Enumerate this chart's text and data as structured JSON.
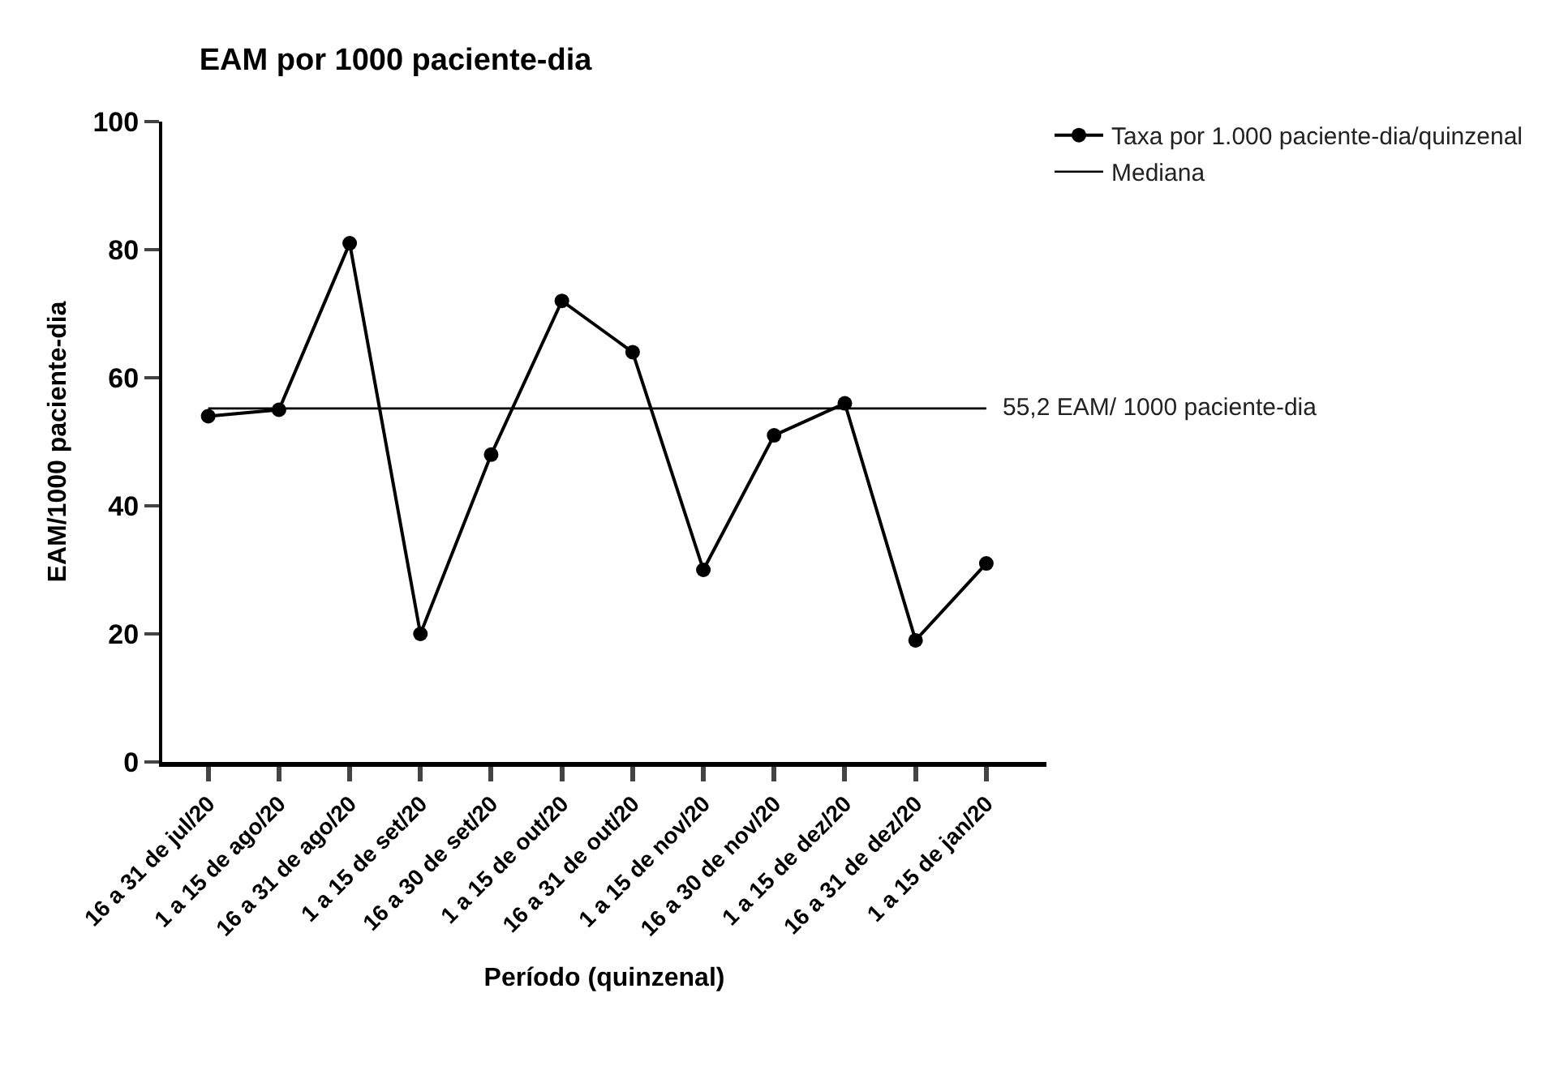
{
  "chart_data": {
    "type": "line",
    "title": "EAM por 1000 paciente-dia",
    "xlabel": "Período (quinzenal)",
    "ylabel": "EAM/1000 paciente-dia",
    "categories": [
      "16 a 31 de jul/20",
      "1 a 15 de ago/20",
      "16 a 31 de ago/20",
      "1 a 15 de set/20",
      "16 a 30 de set/20",
      "1 a 15 de out/20",
      "16 a 31 de out/20",
      "1 a 15 de nov/20",
      "16 a 30 de nov/20",
      "1 a 15 de dez/20",
      "16 a 31 de dez/20",
      "1 a 15 de jan/20"
    ],
    "series": [
      {
        "name": "Taxa por 1.000 paciente-dia/quinzenal",
        "color": "#000000",
        "marker": "circle",
        "values": [
          54,
          55,
          81,
          20,
          48,
          72,
          64,
          30,
          51,
          56,
          19,
          31
        ]
      },
      {
        "name": "Mediana",
        "color": "#000000",
        "marker": "none",
        "values": [
          55.2,
          55.2,
          55.2,
          55.2,
          55.2,
          55.2,
          55.2,
          55.2,
          55.2,
          55.2,
          55.2,
          55.2
        ]
      }
    ],
    "annotations": [
      {
        "text": "55,2 EAM/ 1000 paciente-dia",
        "x": "1 a 15 de jan/20",
        "y": 55.2
      }
    ],
    "ylim": [
      0,
      100
    ],
    "yticks": [
      0,
      20,
      40,
      60,
      80,
      100
    ],
    "legend": "top right"
  }
}
